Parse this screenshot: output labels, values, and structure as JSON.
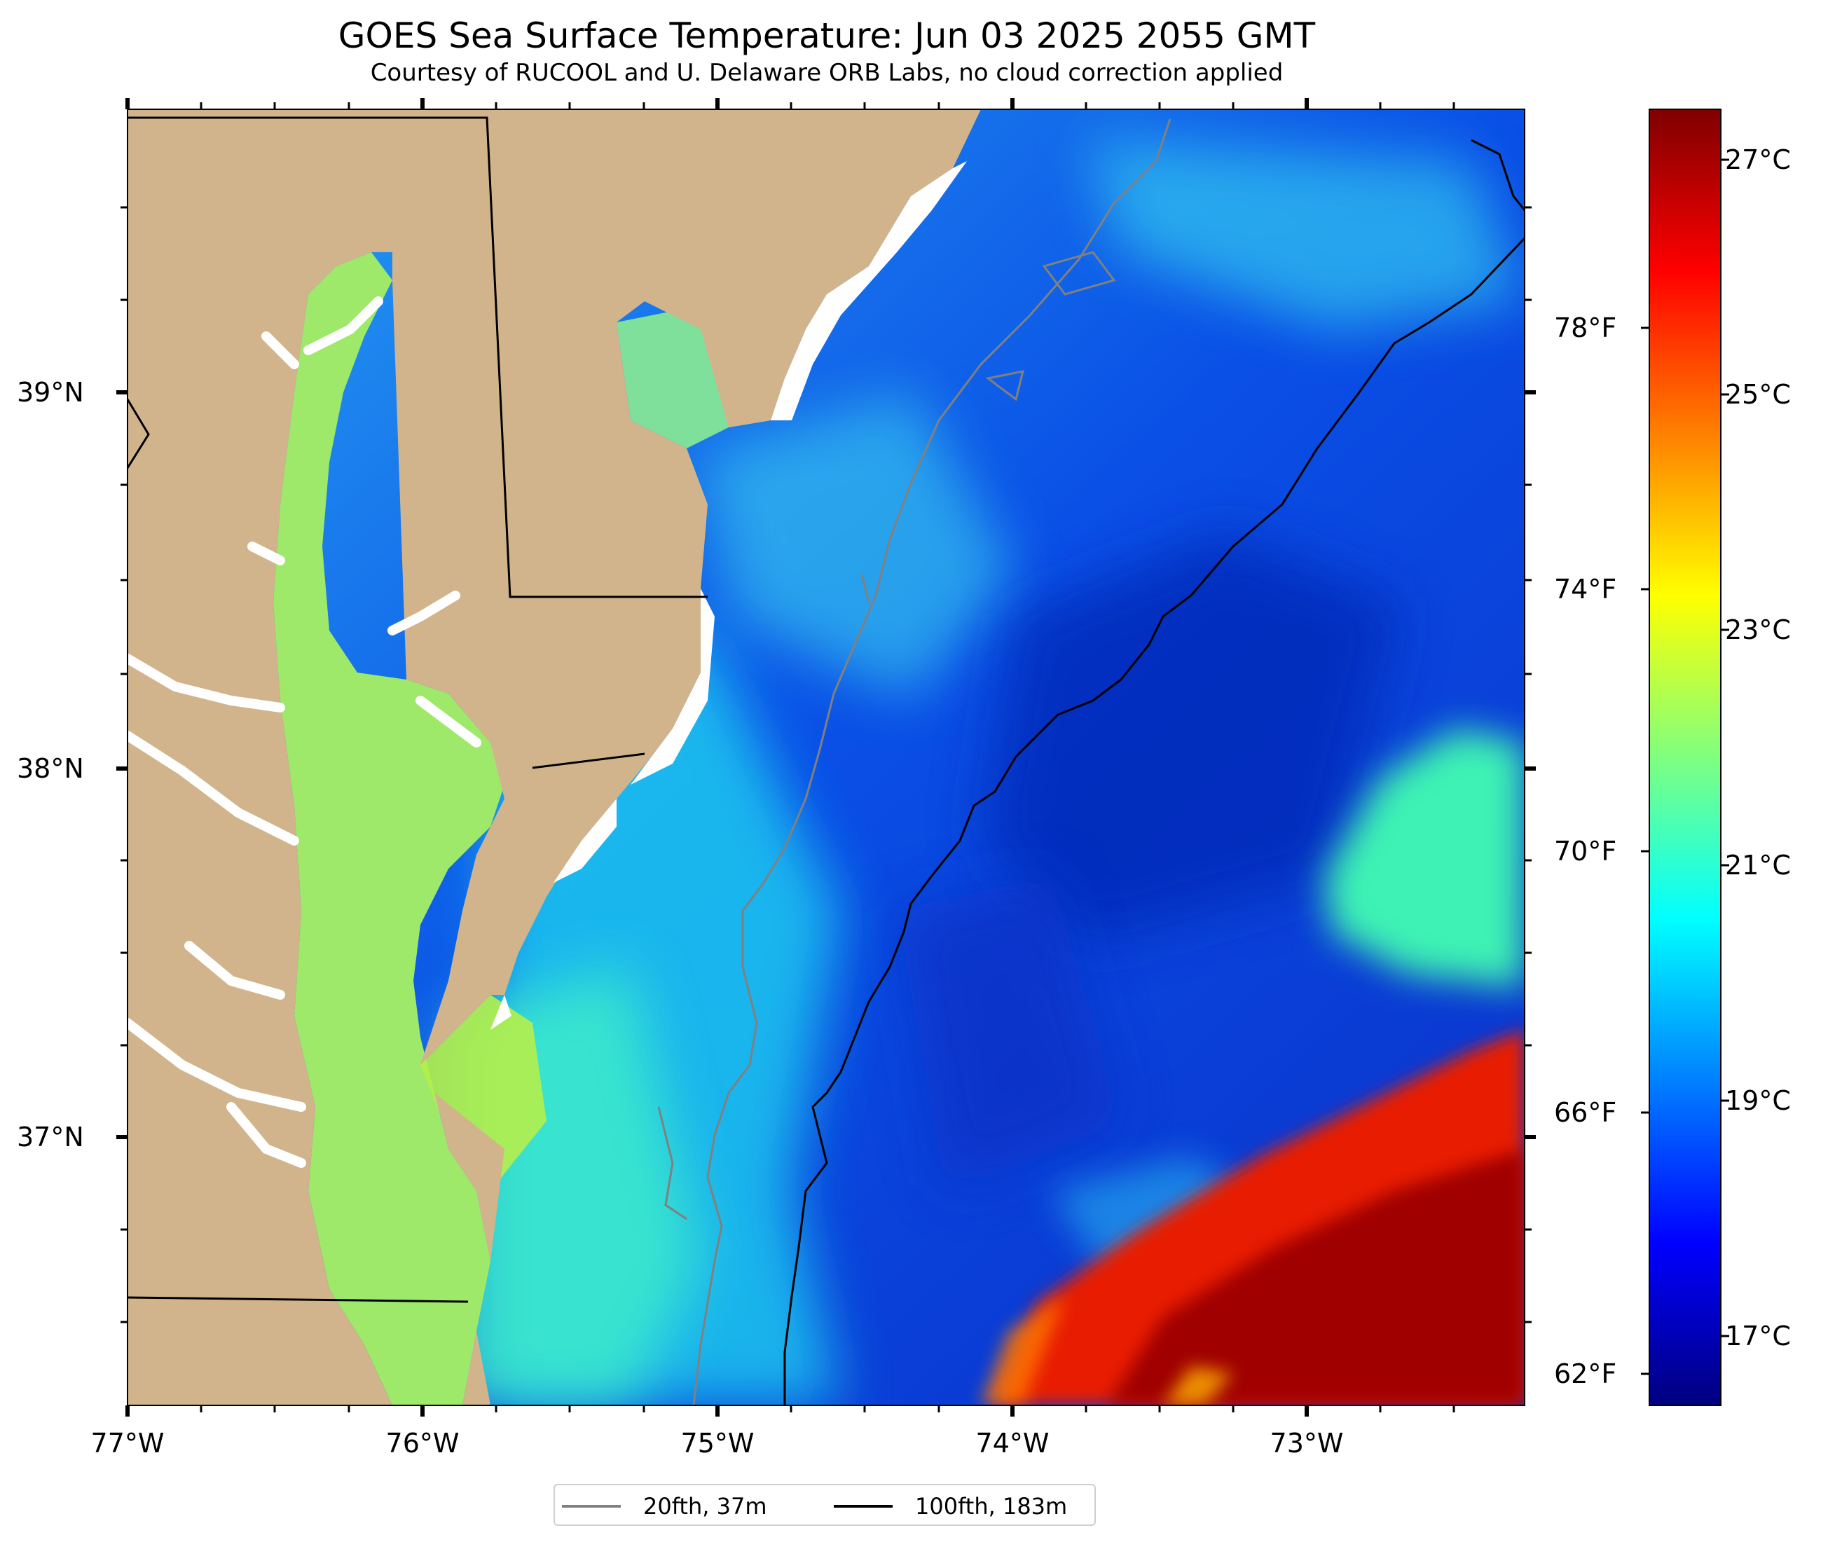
{
  "title": "GOES Sea Surface Temperature: Jun 03 2025 2055 GMT",
  "subtitle": "Courtesy of RUCOOL and U. Delaware ORB Labs, no cloud correction applied",
  "map": {
    "lon_range": [
      -77.0,
      -72.25
    ],
    "lat_range": [
      36.35,
      39.8
    ],
    "land_color": "#d2b48c",
    "ocean_palette": "jet",
    "lon_ticks": [
      {
        "value": -77,
        "label": "77°W"
      },
      {
        "value": -76,
        "label": "76°W"
      },
      {
        "value": -75,
        "label": "75°W"
      },
      {
        "value": -74,
        "label": "74°W"
      },
      {
        "value": -73,
        "label": "73°W"
      }
    ],
    "lat_ticks": [
      {
        "value": 39,
        "label": "39°N"
      },
      {
        "value": 38,
        "label": "38°N"
      },
      {
        "value": 37,
        "label": "37°N"
      }
    ]
  },
  "colorbar": {
    "palette": "jet",
    "celsius_range": [
      16.1,
      27.5
    ],
    "celsius_ticks": [
      {
        "value": 17,
        "label": "17°C"
      },
      {
        "value": 19,
        "label": "19°C"
      },
      {
        "value": 21,
        "label": "21°C"
      },
      {
        "value": 23,
        "label": "23°C"
      },
      {
        "value": 25,
        "label": "25°C"
      },
      {
        "value": 27,
        "label": "27°C"
      }
    ],
    "fahrenheit_ticks": [
      {
        "value": 62,
        "label": "62°F"
      },
      {
        "value": 66,
        "label": "66°F"
      },
      {
        "value": 70,
        "label": "70°F"
      },
      {
        "value": 74,
        "label": "74°F"
      },
      {
        "value": 78,
        "label": "78°F"
      }
    ]
  },
  "legend": {
    "items": [
      {
        "label": "20fth, 37m",
        "color": "#808080"
      },
      {
        "label": "100fth, 183m",
        "color": "#000000"
      }
    ]
  }
}
